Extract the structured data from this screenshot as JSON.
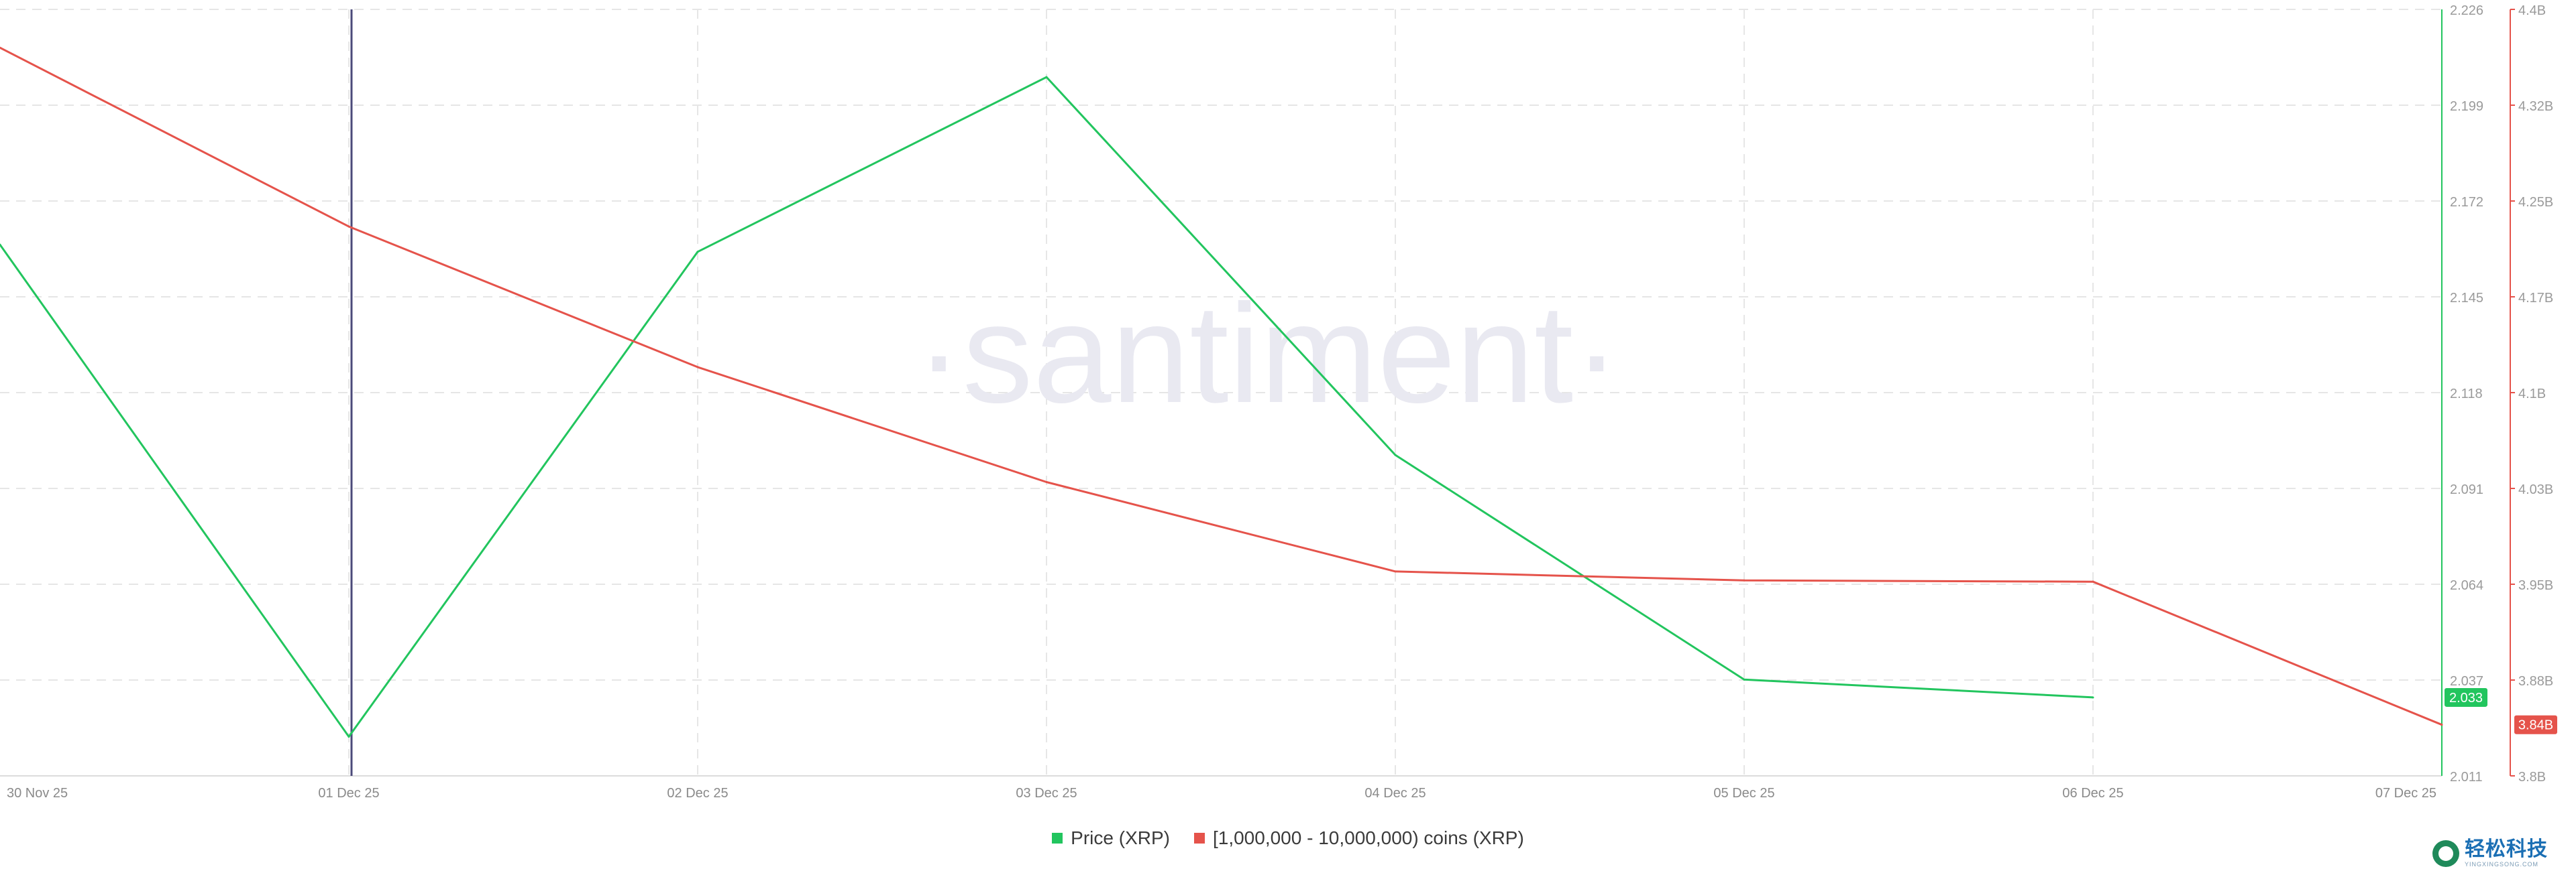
{
  "watermark": "·santiment·",
  "legend": [
    {
      "label": "Price (XRP)",
      "color": "#22c55e"
    },
    {
      "label": "[1,000,000 - 10,000,000) coins (XRP)",
      "color": "#e5534b"
    }
  ],
  "brand": {
    "name_cn": "轻松科技",
    "name_en": "YINGXINGSONG.COM"
  },
  "chart_data": {
    "type": "line",
    "x": [
      "30 Nov 25",
      "01 Dec 25",
      "02 Dec 25",
      "03 Dec 25",
      "04 Dec 25",
      "05 Dec 25",
      "06 Dec 25",
      "07 Dec 25"
    ],
    "x_tick_labels": [
      "30 Nov 25",
      "01 Dec 25",
      "02 Dec 25",
      "03 Dec 25",
      "04 Dec 25",
      "05 Dec 25",
      "06 Dec 25",
      "07 Dec 25"
    ],
    "series": [
      {
        "name": "Price (XRP)",
        "axis": "left",
        "color": "#22c55e",
        "values": [
          2.16,
          2.022,
          2.158,
          2.207,
          2.101,
          2.038,
          2.033,
          null
        ],
        "last_value_label": "2.033"
      },
      {
        "name": "[1,000,000 - 10,000,000) coins (XRP)",
        "axis": "right",
        "color": "#e5534b",
        "values": [
          4.37,
          4.23,
          4.12,
          4.03,
          3.96,
          3.953,
          3.952,
          3.84
        ],
        "last_value_label": "3.84B"
      }
    ],
    "y_axis_price": {
      "min": 2.011,
      "max": 2.226,
      "ticks": [
        "2.226",
        "2.199",
        "2.172",
        "2.145",
        "2.118",
        "2.091",
        "2.064",
        "2.037",
        "2.011"
      ],
      "color": "#22c55e"
    },
    "y_axis_holders": {
      "min": 3.8,
      "max": 4.4,
      "ticks": [
        "4.4B",
        "4.32B",
        "4.25B",
        "4.17B",
        "4.1B",
        "4.03B",
        "3.95B",
        "3.88B",
        "3.8B"
      ],
      "color": "#e5534b"
    },
    "crosshair_x": "01 Dec 25",
    "grid": true,
    "legend_position": "bottom-center"
  }
}
